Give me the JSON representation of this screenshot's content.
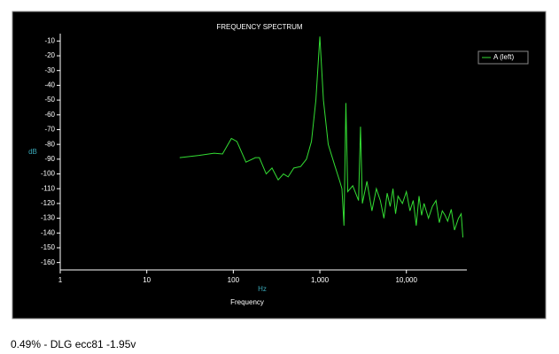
{
  "chart_data": {
    "type": "line",
    "title": "FREQUENCY SPECTRUM",
    "xlabel": "Frequency",
    "xunit": "Hz",
    "ylabel": "dB",
    "xscale": "log",
    "legend": "top-right",
    "x": [
      24,
      40,
      60,
      75,
      95,
      110,
      140,
      180,
      200,
      240,
      280,
      330,
      380,
      430,
      500,
      600,
      700,
      800,
      900,
      1000,
      1100,
      1250,
      1500,
      1700,
      1800,
      1900,
      2000,
      2100,
      2400,
      2800,
      2950,
      3100,
      3500,
      4000,
      4500,
      5000,
      5500,
      6000,
      6500,
      7000,
      7500,
      8000,
      9000,
      10000,
      11000,
      12000,
      13000,
      14000,
      15000,
      16000,
      18000,
      20000,
      22000,
      24000,
      26000,
      28000,
      30000,
      33000,
      36000,
      40000,
      43000,
      45000
    ],
    "series": [
      {
        "name": "A (left)",
        "color": "#33dd33",
        "values": [
          -89,
          -87.5,
          -86,
          -86.5,
          -76,
          -78,
          -92,
          -89,
          -89,
          -100,
          -96,
          -104,
          -100,
          -102,
          -96,
          -95,
          -90,
          -78,
          -50,
          -7,
          -50,
          -80,
          -95,
          -105,
          -110,
          -135,
          -52,
          -112,
          -108,
          -118,
          -68,
          -120,
          -105,
          -125,
          -110,
          -118,
          -130,
          -113,
          -122,
          -110,
          -127,
          -115,
          -120,
          -112,
          -125,
          -118,
          -135,
          -115,
          -128,
          -120,
          -130,
          -122,
          -118,
          -133,
          -125,
          -128,
          -132,
          -124,
          -138,
          -130,
          -127,
          -143
        ]
      }
    ],
    "xlim": [
      1,
      50000
    ],
    "xticks": [
      1,
      10,
      100,
      {
        "value": 1000,
        "label": "1,000"
      },
      {
        "value": 10000,
        "label": "10,000"
      }
    ],
    "ylim": [
      -165,
      -5
    ],
    "yticks": [
      -10,
      -20,
      -30,
      -40,
      -50,
      -60,
      -70,
      -80,
      -90,
      -100,
      -110,
      -120,
      -130,
      -140,
      -150,
      -160
    ]
  },
  "caption": "0.49% - DLG ecc81 -1.95v"
}
